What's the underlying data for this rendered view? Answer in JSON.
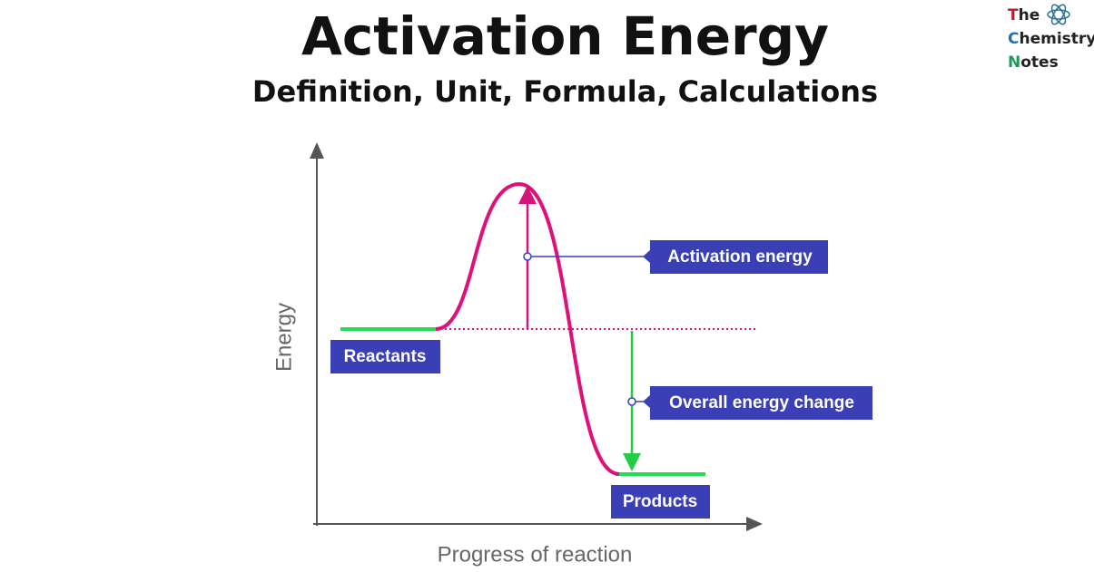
{
  "header": {
    "title": "Activation Energy",
    "subtitle": "Definition, Unit, Formula, Calculations"
  },
  "logo": {
    "line1": "The",
    "line2": "Chemistry",
    "line3": "Notes"
  },
  "diagram": {
    "y_axis_label": "Energy",
    "x_axis_label": "Progress of reaction",
    "labels": [
      "Reactants",
      "Activation energy",
      "Overall energy change",
      "Products"
    ]
  }
}
